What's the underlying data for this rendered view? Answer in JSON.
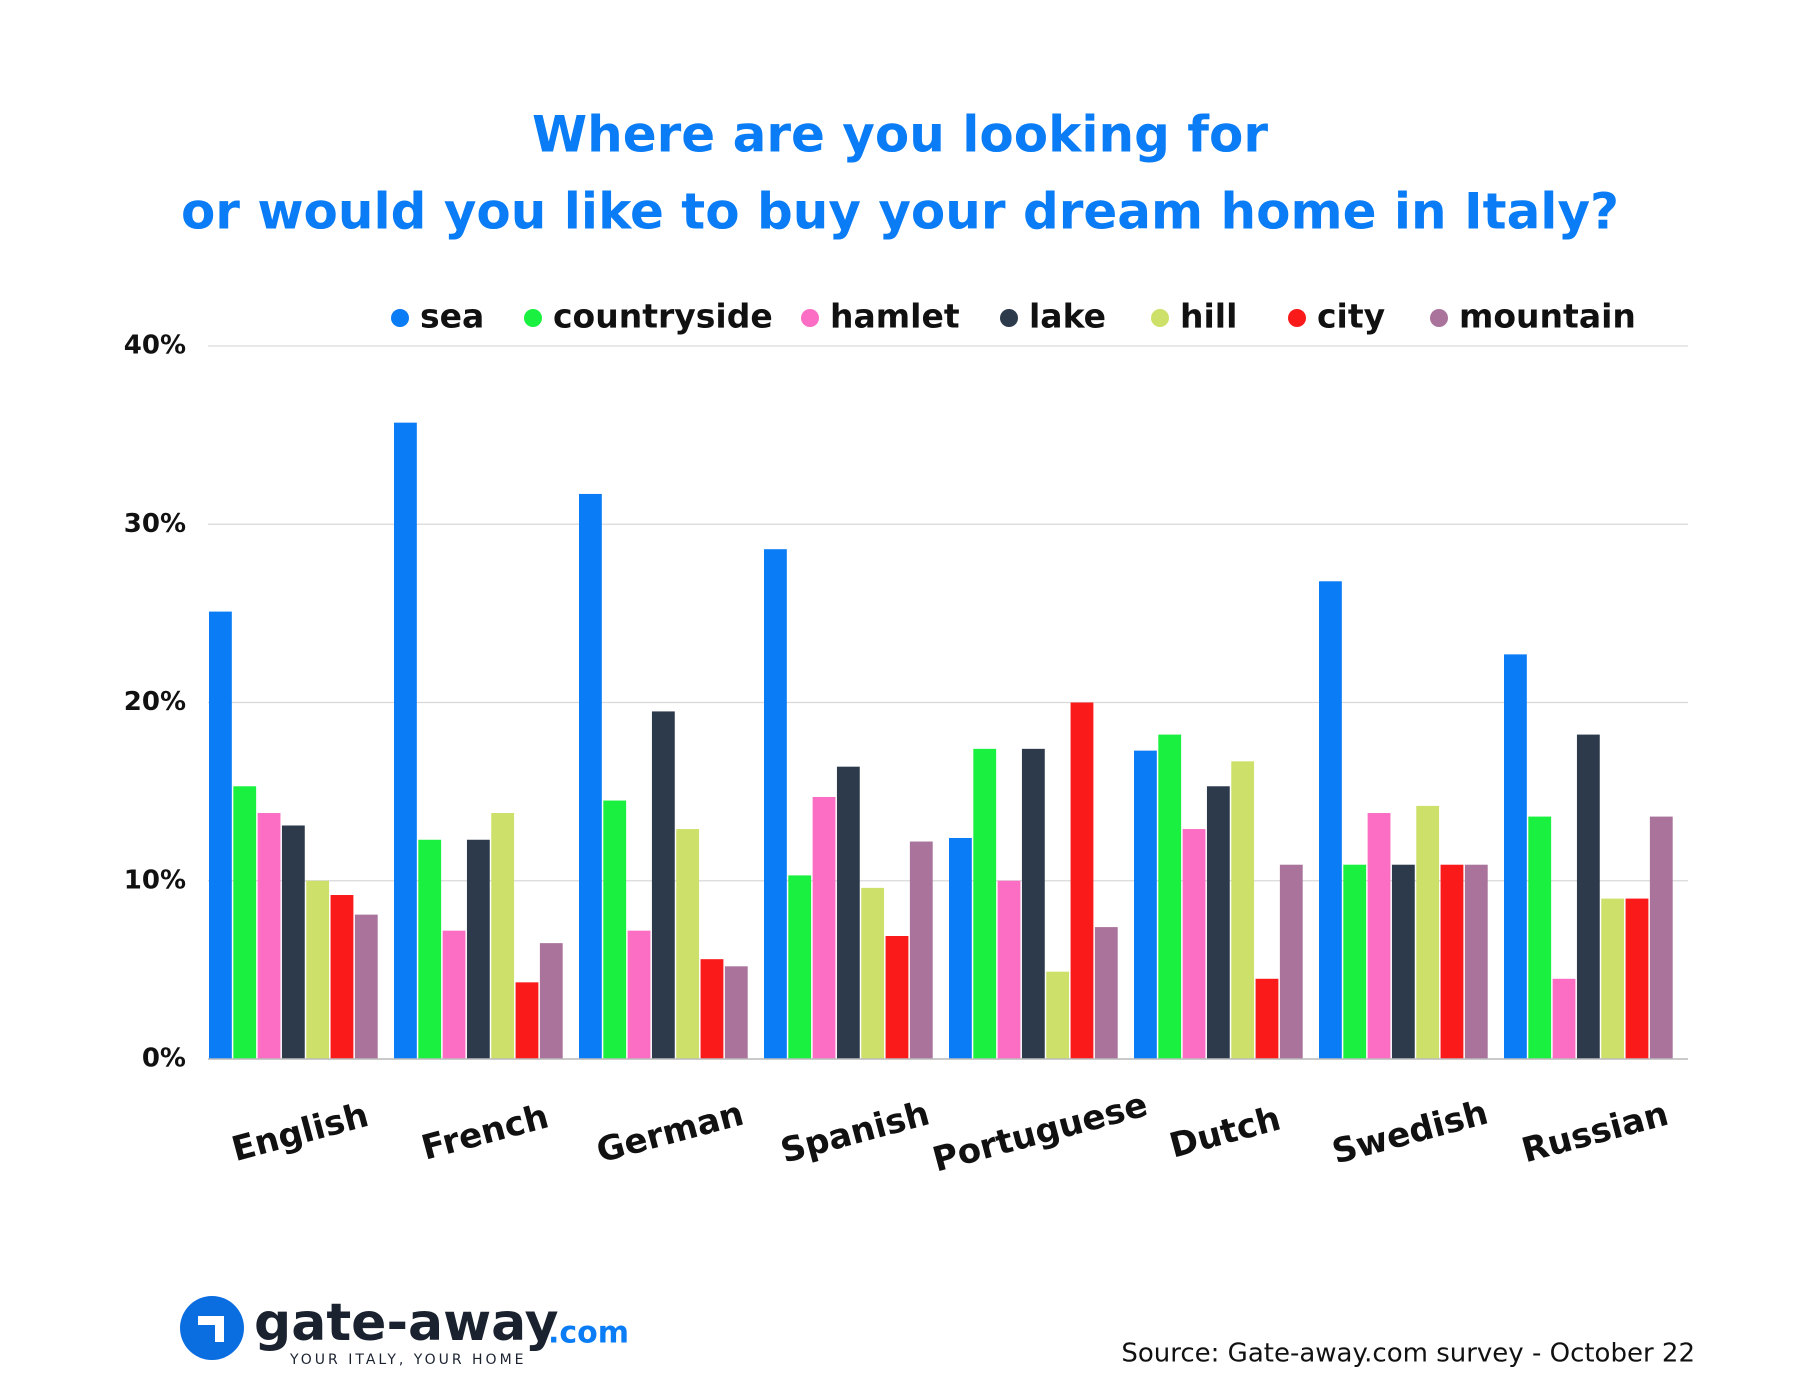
{
  "chart_data": {
    "type": "bar",
    "title": [
      "Where are you looking for",
      "or would you like to buy your dream home in Italy?"
    ],
    "categories": [
      "English",
      "French",
      "German",
      "Spanish",
      "Portuguese",
      "Dutch",
      "Swedish",
      "Russian"
    ],
    "series": [
      {
        "name": "sea",
        "color": "#0a7cf5",
        "values": [
          25.1,
          35.7,
          31.7,
          28.6,
          12.4,
          17.3,
          26.8,
          22.7
        ]
      },
      {
        "name": "countryside",
        "color": "#19f040",
        "values": [
          15.3,
          12.3,
          14.5,
          10.3,
          17.4,
          18.2,
          10.9,
          13.6
        ]
      },
      {
        "name": "hamlet",
        "color": "#fb6ec4",
        "values": [
          13.8,
          7.2,
          7.2,
          14.7,
          10.0,
          12.9,
          13.8,
          4.5
        ]
      },
      {
        "name": "lake",
        "color": "#2d3a4c",
        "values": [
          13.1,
          12.3,
          19.5,
          16.4,
          17.4,
          15.3,
          10.9,
          18.2
        ]
      },
      {
        "name": "hill",
        "color": "#cde06a",
        "values": [
          10.0,
          13.8,
          12.9,
          9.6,
          4.9,
          16.7,
          14.2,
          9.0
        ]
      },
      {
        "name": "city",
        "color": "#fb1a1a",
        "values": [
          9.2,
          4.3,
          5.6,
          6.9,
          20.0,
          4.5,
          10.9,
          9.0
        ]
      },
      {
        "name": "mountain",
        "color": "#a9739c",
        "values": [
          8.1,
          6.5,
          5.2,
          12.2,
          7.4,
          10.9,
          10.9,
          13.6
        ]
      }
    ],
    "ylim": [
      0,
      40
    ],
    "yticks": [
      {
        "value": 0,
        "label": "0%"
      },
      {
        "value": 10,
        "label": "10%"
      },
      {
        "value": 20,
        "label": "20%"
      },
      {
        "value": 30,
        "label": "30%"
      },
      {
        "value": 40,
        "label": "40%"
      }
    ],
    "grid": true,
    "legend": "top",
    "source": "Source: Gate-away.com survey - October 22",
    "logo": {
      "name": "gate-away",
      "domain": ".com",
      "tagline": "YOUR ITALY, YOUR HOME"
    }
  }
}
